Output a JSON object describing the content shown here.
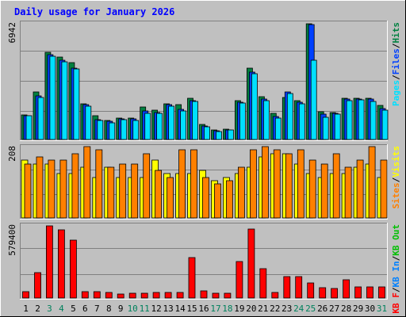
{
  "title": "Daily usage for January 2026",
  "colors": {
    "background": "#c0c0c0",
    "title": "#0000ff",
    "hits": "#008040",
    "files": "#0040ff",
    "pages": "#00e0ff",
    "visits": "#ffff00",
    "sites": "#ff8000",
    "kbout": "#00c000",
    "kbin": "#0080ff",
    "kbf": "#ff0000",
    "weekend_day": "#00805c",
    "weekday": "#000000"
  },
  "chart_data": [
    {
      "type": "bar",
      "name": "hits-files-pages",
      "ymax_label": "6942",
      "ylim": [
        0,
        6942
      ],
      "legend": [
        "Pages",
        "Files",
        "Hits"
      ],
      "categories": [
        "1",
        "2",
        "3",
        "4",
        "5",
        "6",
        "7",
        "8",
        "9",
        "10",
        "11",
        "12",
        "13",
        "14",
        "15",
        "16",
        "17",
        "18",
        "19",
        "20",
        "21",
        "22",
        "23",
        "24",
        "25",
        "26",
        "27",
        "28",
        "29",
        "30",
        "31"
      ],
      "series": [
        {
          "name": "Hits",
          "values": [
            1490,
            2860,
            5250,
            4960,
            4600,
            2150,
            1420,
            1160,
            1290,
            1290,
            1940,
            1750,
            2150,
            2070,
            2470,
            900,
            590,
            620,
            2310,
            4270,
            2560,
            1590,
            2520,
            2320,
            6940,
            1680,
            1640,
            2480,
            2480,
            2480,
            2040
          ]
        },
        {
          "name": "Files",
          "values": [
            1420,
            2600,
            5100,
            4750,
            4300,
            2100,
            1200,
            1080,
            1250,
            1220,
            1700,
            1640,
            2080,
            1790,
            2350,
            810,
            520,
            570,
            2240,
            4060,
            2420,
            1380,
            2860,
            2220,
            6900,
            1500,
            1580,
            2410,
            2440,
            2420,
            1850
          ]
        },
        {
          "name": "Pages",
          "values": [
            1410,
            2530,
            5010,
            4670,
            4210,
            2010,
            1130,
            1000,
            1190,
            1140,
            1570,
            1590,
            1980,
            1700,
            2300,
            750,
            460,
            550,
            2180,
            3960,
            2340,
            1270,
            2740,
            2120,
            4740,
            1330,
            1500,
            2310,
            2370,
            2290,
            1780
          ]
        }
      ]
    },
    {
      "type": "bar",
      "name": "visits-sites",
      "ymax_label": "208",
      "ylim": [
        0,
        208
      ],
      "legend": [
        "Sites",
        "Visits"
      ],
      "categories": [
        "1",
        "2",
        "3",
        "4",
        "5",
        "6",
        "7",
        "8",
        "9",
        "10",
        "11",
        "12",
        "13",
        "14",
        "15",
        "16",
        "17",
        "18",
        "19",
        "20",
        "21",
        "22",
        "23",
        "24",
        "25",
        "26",
        "27",
        "28",
        "29",
        "30",
        "31"
      ],
      "series": [
        {
          "name": "Visits",
          "values": [
            170,
            160,
            160,
            130,
            130,
            150,
            120,
            150,
            120,
            120,
            120,
            170,
            130,
            130,
            130,
            140,
            110,
            120,
            130,
            150,
            180,
            190,
            190,
            160,
            130,
            120,
            130,
            130,
            150,
            160,
            120
          ]
        },
        {
          "name": "Sites",
          "values": [
            160,
            180,
            170,
            170,
            190,
            210,
            200,
            150,
            160,
            160,
            190,
            140,
            120,
            200,
            200,
            120,
            100,
            110,
            150,
            200,
            210,
            200,
            190,
            200,
            170,
            160,
            190,
            150,
            170,
            210,
            170
          ]
        }
      ]
    },
    {
      "type": "bar",
      "name": "kbytes",
      "ymax_label": "579400",
      "ylim": [
        0,
        579400
      ],
      "legend": [
        "KB F",
        "KB In",
        "KB Out"
      ],
      "categories": [
        "1",
        "2",
        "3",
        "4",
        "5",
        "6",
        "7",
        "8",
        "9",
        "10",
        "11",
        "12",
        "13",
        "14",
        "15",
        "16",
        "17",
        "18",
        "19",
        "20",
        "21",
        "22",
        "23",
        "24",
        "25",
        "26",
        "27",
        "28",
        "29",
        "30",
        "31"
      ],
      "series": [
        {
          "name": "KB F",
          "values": [
            49000,
            206000,
            579000,
            546000,
            464000,
            54000,
            48000,
            44000,
            35000,
            36000,
            41000,
            42000,
            45000,
            46000,
            323000,
            57000,
            39000,
            38000,
            296000,
            552000,
            237000,
            44000,
            169000,
            170000,
            121000,
            80000,
            79000,
            149000,
            90000,
            88000,
            88000
          ]
        }
      ]
    }
  ],
  "x_axis": {
    "labels": [
      "1",
      "2",
      "3",
      "4",
      "5",
      "6",
      "7",
      "8",
      "9",
      "10",
      "11",
      "12",
      "13",
      "14",
      "15",
      "16",
      "17",
      "18",
      "19",
      "20",
      "21",
      "22",
      "23",
      "24",
      "25",
      "26",
      "27",
      "28",
      "29",
      "30",
      "31"
    ],
    "weekend": [
      false,
      false,
      true,
      true,
      false,
      false,
      false,
      false,
      false,
      true,
      true,
      false,
      false,
      false,
      false,
      false,
      true,
      true,
      false,
      false,
      false,
      false,
      false,
      true,
      true,
      false,
      false,
      false,
      false,
      false,
      true
    ]
  }
}
